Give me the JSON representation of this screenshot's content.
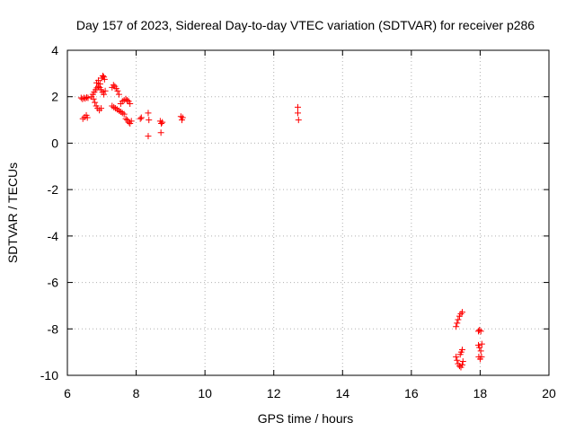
{
  "chart_data": {
    "type": "scatter",
    "title": "Day 157 of 2023, Sidereal Day-to-day VTEC variation (SDTVAR) for receiver p286",
    "xlabel": "GPS time / hours",
    "ylabel": "SDTVAR / TECUs",
    "xlim": [
      6,
      20
    ],
    "ylim": [
      -10,
      4
    ],
    "xticks": [
      6,
      8,
      10,
      12,
      14,
      16,
      18,
      20
    ],
    "yticks": [
      -10,
      -8,
      -6,
      -4,
      -2,
      0,
      2,
      4
    ],
    "xtick_labels": [
      "6",
      "8",
      "10",
      "12",
      "14",
      "16",
      "18",
      "20"
    ],
    "ytick_labels": [
      "-10",
      "-8",
      "-6",
      "-4",
      "-2",
      "0",
      "2",
      "4"
    ],
    "grid": true,
    "marker": "+",
    "color": "#ff0000",
    "series": [
      {
        "name": "p286",
        "points": [
          [
            6.4,
            1.95
          ],
          [
            6.44,
            1.9
          ],
          [
            6.48,
            1.95
          ],
          [
            6.52,
            1.92
          ],
          [
            6.56,
            1.97
          ],
          [
            6.6,
            1.95
          ],
          [
            6.45,
            1.05
          ],
          [
            6.5,
            1.12
          ],
          [
            6.55,
            1.2
          ],
          [
            6.58,
            1.1
          ],
          [
            6.7,
            2.0
          ],
          [
            6.74,
            2.1
          ],
          [
            6.78,
            2.2
          ],
          [
            6.82,
            2.3
          ],
          [
            6.86,
            2.38
          ],
          [
            6.9,
            2.45
          ],
          [
            6.94,
            2.4
          ],
          [
            6.98,
            2.3
          ],
          [
            6.76,
            1.9
          ],
          [
            6.8,
            1.75
          ],
          [
            6.84,
            1.6
          ],
          [
            6.88,
            1.5
          ],
          [
            6.93,
            1.42
          ],
          [
            6.98,
            1.5
          ],
          [
            6.85,
            2.6
          ],
          [
            6.9,
            2.7
          ],
          [
            6.95,
            2.55
          ],
          [
            7.0,
            2.8
          ],
          [
            7.03,
            2.9
          ],
          [
            7.06,
            2.85
          ],
          [
            7.08,
            2.75
          ],
          [
            7.02,
            2.2
          ],
          [
            7.06,
            2.1
          ],
          [
            7.1,
            2.25
          ],
          [
            7.3,
            2.4
          ],
          [
            7.34,
            2.5
          ],
          [
            7.38,
            2.45
          ],
          [
            7.42,
            2.35
          ],
          [
            7.46,
            2.25
          ],
          [
            7.5,
            2.1
          ],
          [
            7.3,
            1.6
          ],
          [
            7.35,
            1.55
          ],
          [
            7.4,
            1.5
          ],
          [
            7.45,
            1.45
          ],
          [
            7.5,
            1.4
          ],
          [
            7.55,
            1.35
          ],
          [
            7.6,
            1.3
          ],
          [
            7.65,
            1.25
          ],
          [
            7.55,
            1.7
          ],
          [
            7.6,
            1.8
          ],
          [
            7.65,
            1.85
          ],
          [
            7.7,
            1.9
          ],
          [
            7.74,
            1.85
          ],
          [
            7.78,
            1.8
          ],
          [
            7.82,
            1.7
          ],
          [
            7.7,
            1.05
          ],
          [
            7.74,
            1.0
          ],
          [
            7.78,
            0.9
          ],
          [
            7.82,
            0.85
          ],
          [
            7.86,
            0.95
          ],
          [
            8.12,
            1.05
          ],
          [
            8.15,
            1.1
          ],
          [
            8.35,
            1.3
          ],
          [
            8.37,
            1.0
          ],
          [
            8.35,
            0.3
          ],
          [
            8.7,
            0.95
          ],
          [
            8.73,
            0.85
          ],
          [
            8.76,
            0.9
          ],
          [
            8.72,
            0.45
          ],
          [
            9.3,
            1.15
          ],
          [
            9.33,
            1.0
          ],
          [
            9.35,
            1.1
          ],
          [
            12.7,
            1.55
          ],
          [
            12.7,
            1.3
          ],
          [
            12.72,
            1.0
          ],
          [
            17.3,
            -7.9
          ],
          [
            17.33,
            -7.75
          ],
          [
            17.36,
            -7.6
          ],
          [
            17.4,
            -7.45
          ],
          [
            17.44,
            -7.35
          ],
          [
            17.48,
            -7.28
          ],
          [
            17.3,
            -9.2
          ],
          [
            17.33,
            -9.35
          ],
          [
            17.36,
            -9.5
          ],
          [
            17.4,
            -9.6
          ],
          [
            17.44,
            -9.65
          ],
          [
            17.48,
            -9.55
          ],
          [
            17.5,
            -9.4
          ],
          [
            17.42,
            -9.1
          ],
          [
            17.45,
            -9.0
          ],
          [
            17.48,
            -8.9
          ],
          [
            17.95,
            -8.1
          ],
          [
            17.98,
            -8.05
          ],
          [
            18.02,
            -8.1
          ],
          [
            17.95,
            -8.7
          ],
          [
            17.98,
            -8.8
          ],
          [
            18.02,
            -8.95
          ],
          [
            18.05,
            -8.65
          ],
          [
            17.96,
            -9.2
          ],
          [
            18.0,
            -9.3
          ],
          [
            18.04,
            -9.2
          ]
        ]
      }
    ]
  }
}
